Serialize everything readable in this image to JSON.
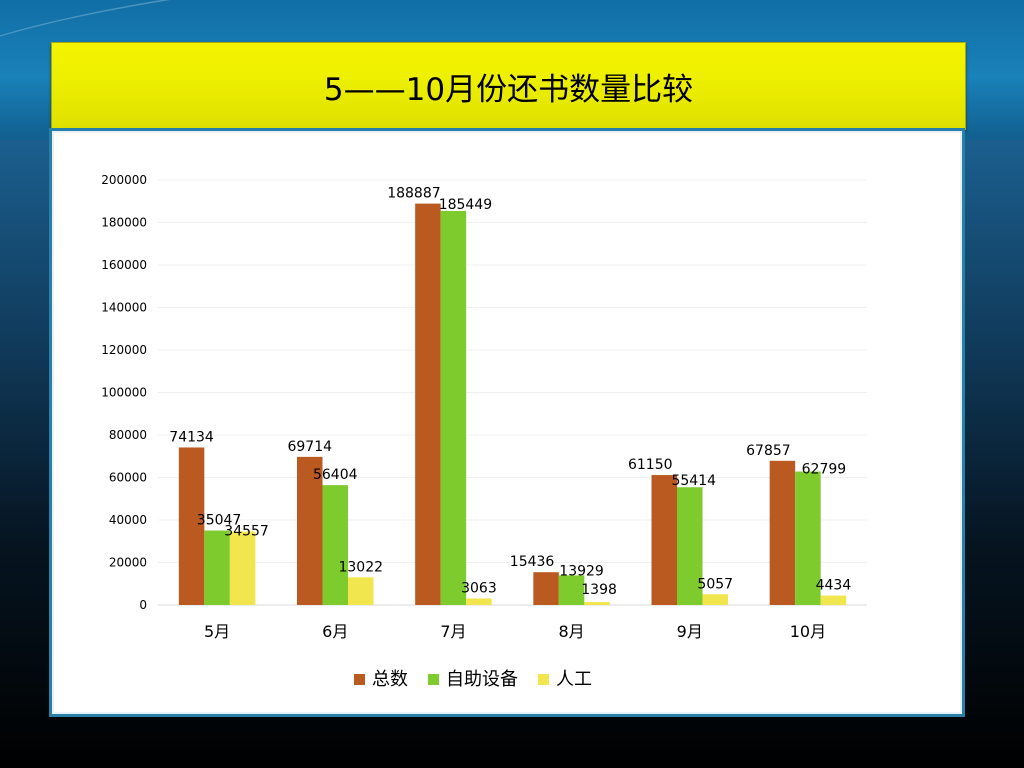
{
  "slide": {
    "title": "5——10月份还书数量比较"
  },
  "colors": {
    "总数": "#BA5A20",
    "自助设备": "#7DCB2D",
    "人工": "#F2E64E",
    "title_bar": "#EEF000",
    "panel_border": "#2A7FA8"
  },
  "chart_data": {
    "type": "bar",
    "title": "",
    "xlabel": "",
    "ylabel": "",
    "categories": [
      "5月",
      "6月",
      "7月",
      "8月",
      "9月",
      "10月"
    ],
    "series": [
      {
        "name": "总数",
        "values": [
          74134,
          69714,
          188887,
          15436,
          61150,
          67857
        ]
      },
      {
        "name": "自助设备",
        "values": [
          35047,
          56404,
          185449,
          13929,
          55414,
          62799
        ]
      },
      {
        "name": "人工",
        "values": [
          34557,
          13022,
          3063,
          1398,
          5057,
          4434
        ]
      }
    ],
    "ylim": [
      0,
      200000
    ],
    "yticks": [
      0,
      20000,
      40000,
      60000,
      80000,
      100000,
      120000,
      140000,
      160000,
      180000,
      200000
    ],
    "grid": true,
    "legend_position": "bottom",
    "data_labels": true
  }
}
